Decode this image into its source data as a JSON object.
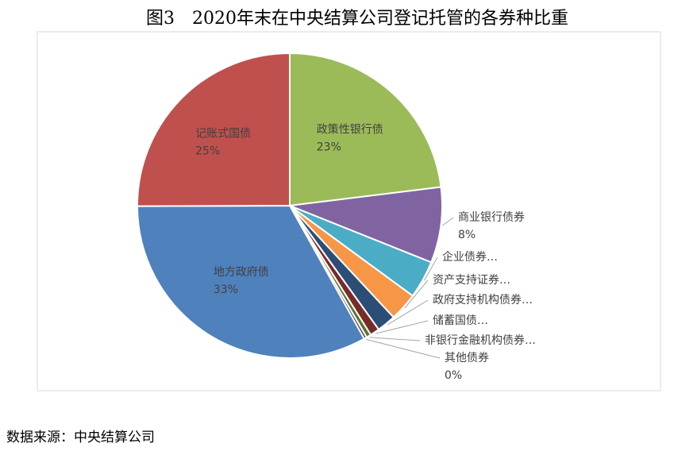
{
  "chart_data": {
    "type": "pie",
    "title": "图3　2020年末在中央结算公司登记托管的各券种比重",
    "source": "数据来源：中央结算公司",
    "categories": [
      "政策性银行债",
      "商业银行债券",
      "企业债券…",
      "资产支持证券…",
      "政府支持机构债券…",
      "储蓄国债…",
      "非银行金融机构债券…",
      "其他债券",
      "地方政府债",
      "记账式国债"
    ],
    "values": [
      23,
      8,
      4,
      3,
      2,
      1,
      0.5,
      0.3,
      33,
      25
    ],
    "value_labels": [
      "23%",
      "8%",
      null,
      null,
      null,
      null,
      null,
      "0%",
      "33%",
      "25%"
    ],
    "colors": [
      "#9bbb59",
      "#8064a2",
      "#4bacc6",
      "#f79646",
      "#2c4d75",
      "#772c2a",
      "#5f7530",
      "#4d3b62",
      "#4f81bd",
      "#c0504d"
    ]
  }
}
